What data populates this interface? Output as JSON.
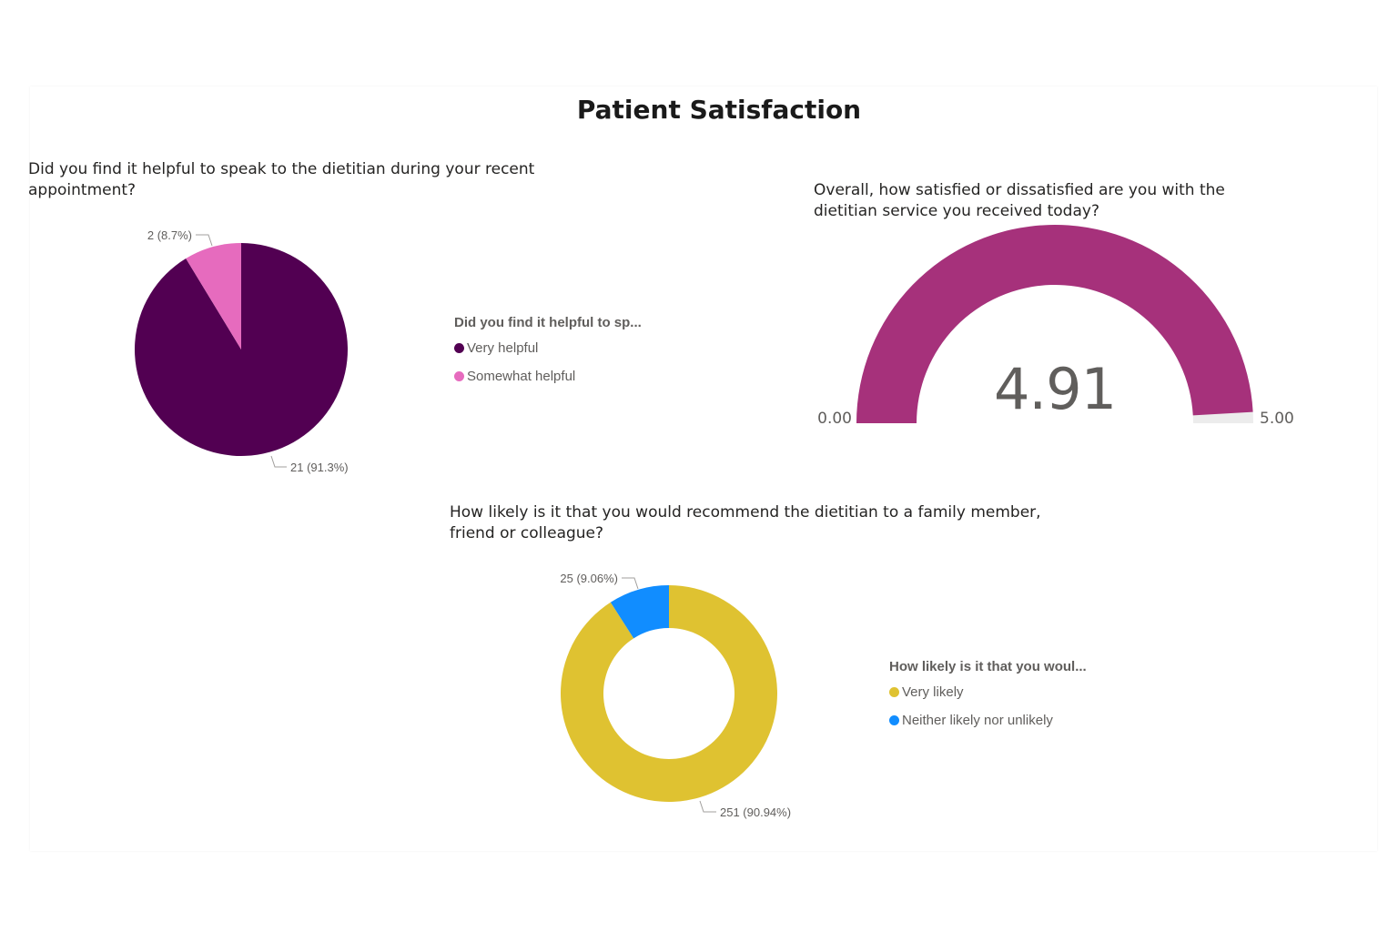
{
  "report": {
    "title": "Patient Satisfaction"
  },
  "chart_data": [
    {
      "type": "pie",
      "title": "Did you find it helpful to speak to the dietitian during your recent appointment?",
      "title_lines": [
        "Did you find it helpful to speak to the dietitian during your recent",
        "appointment?"
      ],
      "legend_title": "Did you find it helpful to sp...",
      "legend_position": "right",
      "categories": [
        "Very helpful",
        "Somewhat helpful"
      ],
      "values": [
        21,
        2
      ],
      "data_labels": [
        "21 (91.3%)",
        "2 (8.7%)"
      ],
      "colors": [
        "#520052",
        "#e66bbe"
      ]
    },
    {
      "type": "gauge",
      "title": "Overall, how satisfied or dissatisfied are you with the dietitian service you received today?",
      "title_lines": [
        "Overall, how satisfied or dissatisfied are you with the",
        "dietitian service you received today?"
      ],
      "value": 4.91,
      "value_label": "4.91",
      "min": 0,
      "max": 5,
      "min_label": "0.00",
      "max_label": "5.00",
      "fill_color": "#a6317b",
      "track_color": "#ececec"
    },
    {
      "type": "donut",
      "title": "How likely is it that you would recommend the dietitian to a family member, friend or colleague?",
      "title_lines": [
        "How likely is it that you would recommend the dietitian to a family member,",
        "friend or colleague?"
      ],
      "legend_title": "How likely is it that you woul...",
      "legend_position": "right",
      "categories": [
        "Very likely",
        "Neither likely nor unlikely"
      ],
      "values": [
        251,
        25
      ],
      "data_labels": [
        "251 (90.94%)",
        "25 (9.06%)"
      ],
      "colors": [
        "#dfc231",
        "#118dff"
      ]
    }
  ]
}
